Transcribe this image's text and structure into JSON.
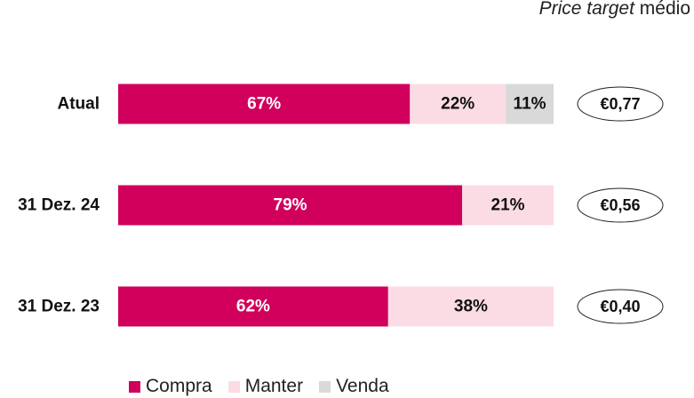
{
  "header": {
    "price_target_italic": "Price target",
    "price_target_rest": "médio"
  },
  "legend": [
    {
      "label": "Compra",
      "color": "#d0005c"
    },
    {
      "label": "Manter",
      "color": "#fcdce4"
    },
    {
      "label": "Venda",
      "color": "#d9d9d9"
    }
  ],
  "chart_data": {
    "type": "bar",
    "orientation": "horizontal",
    "stacked": true,
    "categories": [
      "Atual",
      "31 Dez. 24",
      "31 Dez. 23"
    ],
    "series": [
      {
        "name": "Compra",
        "values": [
          67,
          79,
          62
        ],
        "color": "#d0005c",
        "label_color": "#ffffff"
      },
      {
        "name": "Manter",
        "values": [
          22,
          21,
          38
        ],
        "color": "#fcdce4",
        "label_color": "#111111"
      },
      {
        "name": "Venda",
        "values": [
          11,
          0,
          0
        ],
        "color": "#d9d9d9",
        "label_color": "#111111"
      }
    ],
    "value_suffix": "%",
    "price_targets": [
      "€0,77",
      "€0,56",
      "€0,40"
    ],
    "xlim": [
      0,
      100
    ],
    "grid": false,
    "legend_position": "bottom"
  }
}
